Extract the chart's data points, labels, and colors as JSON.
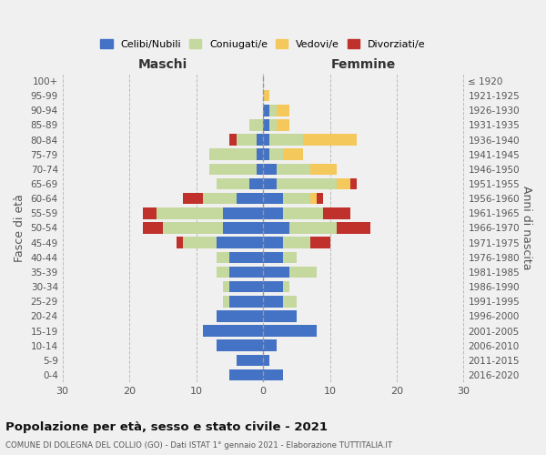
{
  "age_groups": [
    "0-4",
    "5-9",
    "10-14",
    "15-19",
    "20-24",
    "25-29",
    "30-34",
    "35-39",
    "40-44",
    "45-49",
    "50-54",
    "55-59",
    "60-64",
    "65-69",
    "70-74",
    "75-79",
    "80-84",
    "85-89",
    "90-94",
    "95-99",
    "100+"
  ],
  "birth_years": [
    "2016-2020",
    "2011-2015",
    "2006-2010",
    "2001-2005",
    "1996-2000",
    "1991-1995",
    "1986-1990",
    "1981-1985",
    "1976-1980",
    "1971-1975",
    "1966-1970",
    "1961-1965",
    "1956-1960",
    "1951-1955",
    "1946-1950",
    "1941-1945",
    "1936-1940",
    "1931-1935",
    "1926-1930",
    "1921-1925",
    "≤ 1920"
  ],
  "maschi_celibi": [
    5,
    4,
    7,
    9,
    7,
    5,
    5,
    5,
    5,
    7,
    6,
    6,
    4,
    2,
    1,
    1,
    1,
    0,
    0,
    0,
    0
  ],
  "maschi_coniugati": [
    0,
    0,
    0,
    0,
    0,
    1,
    1,
    2,
    2,
    5,
    9,
    10,
    5,
    5,
    7,
    7,
    3,
    2,
    0,
    0,
    0
  ],
  "maschi_vedovi": [
    0,
    0,
    0,
    0,
    0,
    0,
    0,
    0,
    0,
    0,
    0,
    0,
    0,
    0,
    0,
    0,
    0,
    0,
    0,
    0,
    0
  ],
  "maschi_divorziati": [
    0,
    0,
    0,
    0,
    0,
    0,
    0,
    0,
    0,
    1,
    3,
    2,
    3,
    0,
    0,
    0,
    1,
    0,
    0,
    0,
    0
  ],
  "femmine_celibi": [
    3,
    1,
    2,
    8,
    5,
    3,
    3,
    4,
    3,
    3,
    4,
    3,
    3,
    2,
    2,
    1,
    1,
    1,
    1,
    0,
    0
  ],
  "femmine_coniugati": [
    0,
    0,
    0,
    0,
    0,
    2,
    1,
    4,
    2,
    4,
    7,
    6,
    4,
    9,
    5,
    2,
    5,
    1,
    1,
    0,
    0
  ],
  "femmine_vedovi": [
    0,
    0,
    0,
    0,
    0,
    0,
    0,
    0,
    0,
    0,
    0,
    0,
    1,
    2,
    4,
    3,
    8,
    2,
    2,
    1,
    0
  ],
  "femmine_divorziati": [
    0,
    0,
    0,
    0,
    0,
    0,
    0,
    0,
    0,
    3,
    5,
    4,
    1,
    1,
    0,
    0,
    0,
    0,
    0,
    0,
    0
  ],
  "colors": {
    "celibi": "#4472c4",
    "coniugati": "#c5d89d",
    "vedovi": "#f5c85c",
    "divorziati": "#c0312b"
  },
  "title": "Popolazione per età, sesso e stato civile - 2021",
  "subtitle": "COMUNE DI DOLEGNA DEL COLLIO (GO) - Dati ISTAT 1° gennaio 2021 - Elaborazione TUTTITALIA.IT",
  "xlabel_left": "Maschi",
  "xlabel_right": "Femmine",
  "ylabel_left": "Fasce di età",
  "ylabel_right": "Anni di nascita",
  "xlim": 30,
  "bg_color": "#f0f0f0",
  "legend_labels": [
    "Celibi/Nubili",
    "Coniugati/e",
    "Vedovi/e",
    "Divorziati/e"
  ]
}
